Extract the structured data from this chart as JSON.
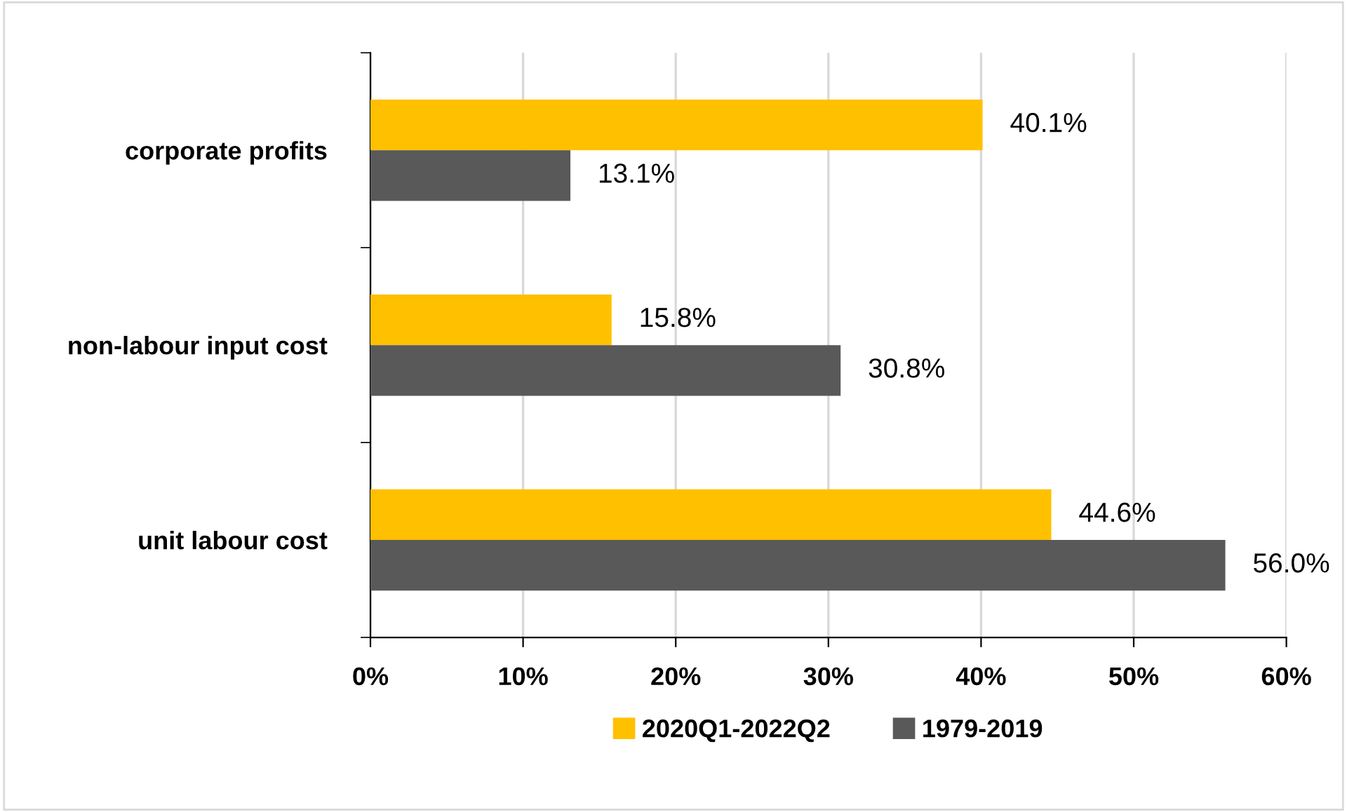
{
  "chart_data": {
    "type": "bar",
    "orientation": "horizontal",
    "categories": [
      "corporate profits",
      "non-labour input cost",
      "unit labour cost"
    ],
    "series": [
      {
        "name": "2020Q1-2022Q2",
        "color": "#ffc000",
        "values": [
          40.1,
          15.8,
          44.6
        ],
        "value_labels": [
          "40.1%",
          "15.8%",
          "44.6%"
        ]
      },
      {
        "name": "1979-2019",
        "color": "#595959",
        "values": [
          13.1,
          30.8,
          56.0
        ],
        "value_labels": [
          "13.1%",
          "30.8%",
          "56.0%"
        ]
      }
    ],
    "xlim": [
      0,
      60
    ],
    "xticks": [
      {
        "value": 0,
        "label": "0%"
      },
      {
        "value": 10,
        "label": "10%"
      },
      {
        "value": 20,
        "label": "20%"
      },
      {
        "value": 30,
        "label": "30%"
      },
      {
        "value": 40,
        "label": "40%"
      },
      {
        "value": 50,
        "label": "50%"
      },
      {
        "value": 60,
        "label": "60%"
      }
    ],
    "grid": "x",
    "legend": "bottom"
  }
}
